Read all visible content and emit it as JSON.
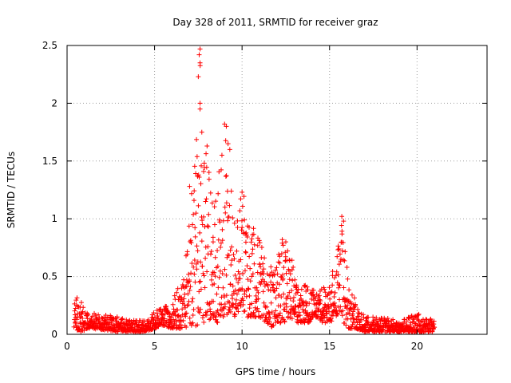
{
  "chart_data": {
    "type": "scatter",
    "title": "Day 328 of 2011, SRMTID for receiver graz",
    "xlabel": "GPS time / hours",
    "ylabel": "SRMTID / TECUs",
    "xlim": [
      0,
      24
    ],
    "ylim": [
      0,
      2.5
    ],
    "xticks": [
      0,
      5,
      10,
      15,
      20
    ],
    "yticks": [
      0,
      0.5,
      1,
      1.5,
      2,
      2.5
    ],
    "xtick_labels": [
      "0",
      "5",
      "10",
      "15",
      "20"
    ],
    "ytick_labels": [
      "0",
      "0.5",
      "1",
      "1.5",
      "2",
      "2.5"
    ],
    "grid": true,
    "marker": "plus",
    "color": "#ff0000",
    "series": [
      {
        "name": "graz",
        "envelope": {
          "hours": [
            0.4,
            0.8,
            1.2,
            2.0,
            3.0,
            4.0,
            4.6,
            5.0,
            5.4,
            6.0,
            6.2,
            6.6,
            7.0,
            7.2,
            7.4,
            7.6,
            7.8,
            8.0,
            8.3,
            8.6,
            8.9,
            9.1,
            9.3,
            9.6,
            9.8,
            10.1,
            10.3,
            10.6,
            11.0,
            11.4,
            11.8,
            12.2,
            12.4,
            12.7,
            13.0,
            13.4,
            13.8,
            14.2,
            14.6,
            15.0,
            15.4,
            15.6,
            15.8,
            16.1,
            16.5,
            17.0,
            18.0,
            19.0,
            20.0,
            21.0
          ],
          "upper": [
            0.35,
            0.28,
            0.2,
            0.18,
            0.15,
            0.12,
            0.12,
            0.2,
            0.25,
            0.25,
            0.45,
            0.45,
            1.15,
            1.3,
            1.7,
            2.45,
            1.7,
            1.6,
            1.3,
            1.3,
            1.8,
            1.65,
            1.35,
            1.1,
            1.15,
            1.25,
            1.0,
            0.95,
            0.85,
            0.6,
            0.6,
            0.82,
            0.8,
            0.7,
            0.6,
            0.45,
            0.42,
            0.38,
            0.4,
            0.48,
            0.7,
            1.02,
            0.95,
            0.4,
            0.3,
            0.15,
            0.15,
            0.12,
            0.18,
            0.12
          ],
          "lower": [
            0.05,
            0.02,
            0.05,
            0.04,
            0.02,
            0.02,
            0.03,
            0.05,
            0.08,
            0.05,
            0.05,
            0.05,
            0.05,
            0.1,
            0.05,
            0.05,
            0.1,
            0.1,
            0.15,
            0.1,
            0.15,
            0.15,
            0.2,
            0.15,
            0.2,
            0.2,
            0.15,
            0.15,
            0.15,
            0.1,
            0.05,
            0.1,
            0.1,
            0.15,
            0.1,
            0.1,
            0.1,
            0.15,
            0.1,
            0.1,
            0.15,
            0.2,
            0.1,
            0.05,
            0.05,
            0.02,
            0.02,
            0.02,
            0.02,
            0.02
          ]
        },
        "peaks": [
          {
            "x": 7.6,
            "y": 2.47
          },
          {
            "x": 7.55,
            "y": 2.42
          },
          {
            "x": 7.6,
            "y": 2.35
          },
          {
            "x": 7.5,
            "y": 2.23
          },
          {
            "x": 7.6,
            "y": 2.0
          },
          {
            "x": 7.6,
            "y": 1.95
          },
          {
            "x": 9.0,
            "y": 1.82
          },
          {
            "x": 9.1,
            "y": 1.8
          },
          {
            "x": 7.7,
            "y": 1.75
          },
          {
            "x": 8.0,
            "y": 1.63
          },
          {
            "x": 9.2,
            "y": 1.65
          },
          {
            "x": 9.3,
            "y": 1.6
          },
          {
            "x": 10.0,
            "y": 1.23
          },
          {
            "x": 15.7,
            "y": 1.02
          },
          {
            "x": 15.8,
            "y": 0.98
          },
          {
            "x": 12.3,
            "y": 0.82
          },
          {
            "x": 12.5,
            "y": 0.8
          },
          {
            "x": 7.0,
            "y": 1.28
          }
        ]
      }
    ]
  }
}
